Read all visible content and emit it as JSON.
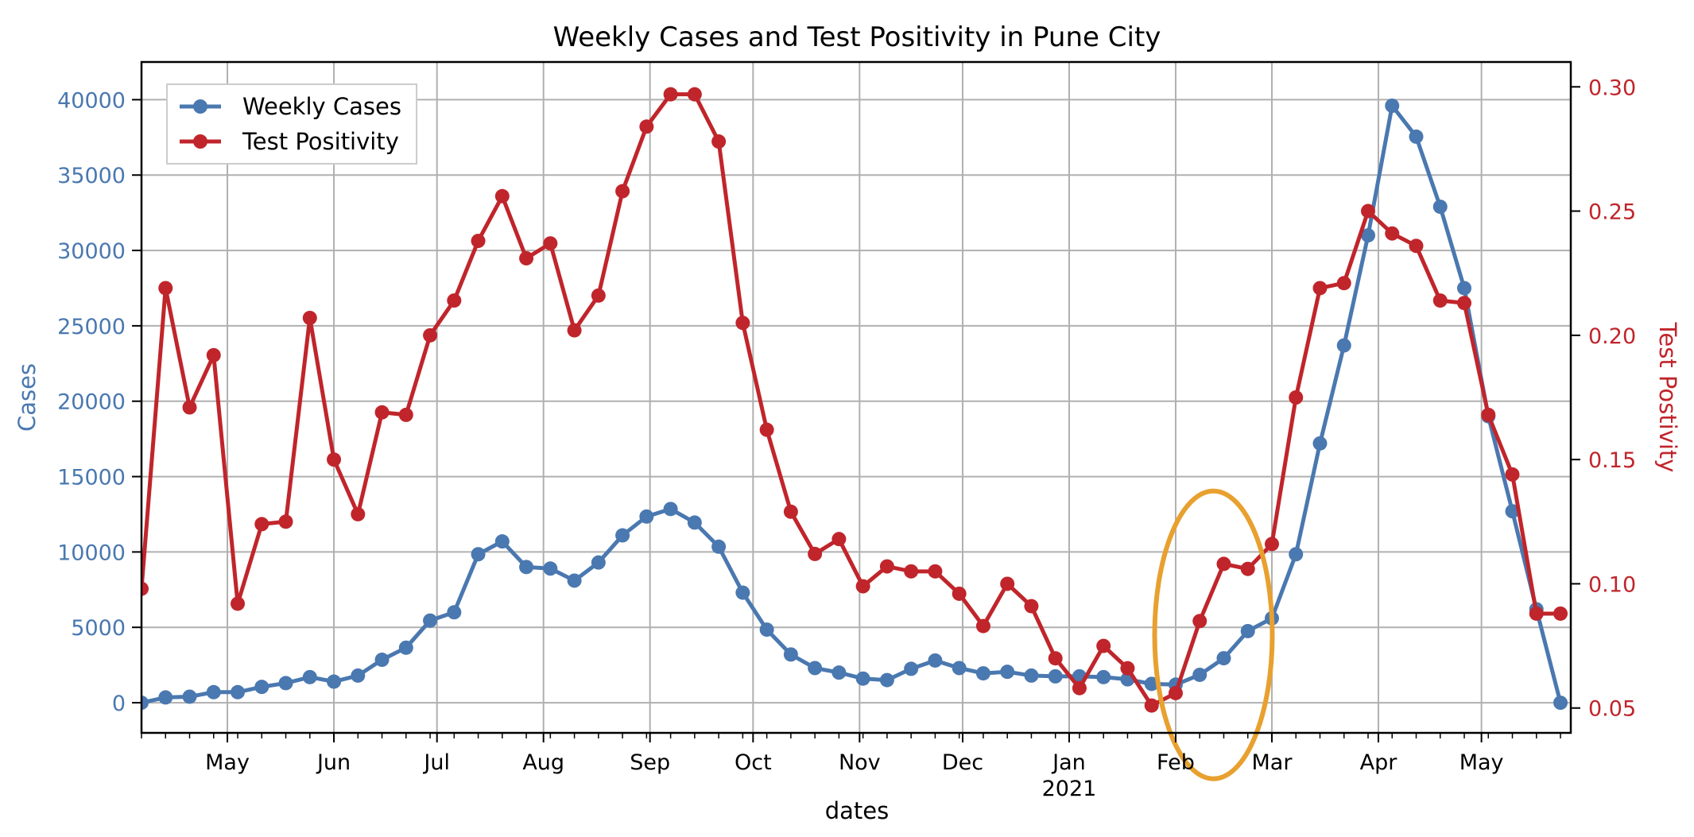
{
  "chart_data": {
    "type": "line",
    "title": "Weekly Cases and Test Positivity in Pune City",
    "xlabel": "dates",
    "ylabel_left": "Cases",
    "ylabel_right": "Test Postivity",
    "x_start": "2020-04-06",
    "x_end": "2021-05-27",
    "ylim_left": [
      -2000,
      42500
    ],
    "ylim_right": [
      0.04,
      0.31
    ],
    "yticks_left": [
      "0",
      "5000",
      "10000",
      "15000",
      "20000",
      "25000",
      "30000",
      "35000",
      "40000"
    ],
    "yticks_right": [
      "0.05",
      "0.10",
      "0.15",
      "0.20",
      "0.25",
      "0.30"
    ],
    "xticks": [
      {
        "date": "2020-05-01",
        "label": "May"
      },
      {
        "date": "2020-06-01",
        "label": "Jun"
      },
      {
        "date": "2020-07-01",
        "label": "Jul"
      },
      {
        "date": "2020-08-01",
        "label": "Aug"
      },
      {
        "date": "2020-09-01",
        "label": "Sep"
      },
      {
        "date": "2020-10-01",
        "label": "Oct"
      },
      {
        "date": "2020-11-01",
        "label": "Nov"
      },
      {
        "date": "2020-12-01",
        "label": "Dec"
      },
      {
        "date": "2021-01-01",
        "label": "Jan"
      },
      {
        "date": "2021-02-01",
        "label": "Feb"
      },
      {
        "date": "2021-03-01",
        "label": "Mar"
      },
      {
        "date": "2021-04-01",
        "label": "Apr"
      },
      {
        "date": "2021-05-01",
        "label": "May"
      }
    ],
    "year_label": {
      "date": "2021-01-01",
      "label": "2021"
    },
    "grid": true,
    "legend": "top-left",
    "colors": {
      "cases": "#4a78b0",
      "positivity": "#c0252b",
      "highlight": "#e8a02f"
    },
    "dates": [
      "2020-04-06",
      "2020-04-13",
      "2020-04-20",
      "2020-04-27",
      "2020-05-04",
      "2020-05-11",
      "2020-05-18",
      "2020-05-25",
      "2020-06-01",
      "2020-06-08",
      "2020-06-15",
      "2020-06-22",
      "2020-06-29",
      "2020-07-06",
      "2020-07-13",
      "2020-07-20",
      "2020-07-27",
      "2020-08-03",
      "2020-08-10",
      "2020-08-17",
      "2020-08-24",
      "2020-08-31",
      "2020-09-07",
      "2020-09-14",
      "2020-09-21",
      "2020-09-28",
      "2020-10-05",
      "2020-10-12",
      "2020-10-19",
      "2020-10-26",
      "2020-11-02",
      "2020-11-09",
      "2020-11-16",
      "2020-11-23",
      "2020-11-30",
      "2020-12-07",
      "2020-12-14",
      "2020-12-21",
      "2020-12-28",
      "2021-01-04",
      "2021-01-11",
      "2021-01-18",
      "2021-01-25",
      "2021-02-01",
      "2021-02-08",
      "2021-02-15",
      "2021-02-22",
      "2021-03-01",
      "2021-03-08",
      "2021-03-15",
      "2021-03-22",
      "2021-03-29",
      "2021-04-05",
      "2021-04-12",
      "2021-04-19",
      "2021-04-26",
      "2021-05-03",
      "2021-05-10",
      "2021-05-17",
      "2021-05-24"
    ],
    "series": [
      {
        "name": "Weekly Cases",
        "axis": "left",
        "values": [
          0,
          350,
          400,
          700,
          700,
          1050,
          1300,
          1700,
          1400,
          1800,
          2850,
          3650,
          5450,
          6000,
          9850,
          10700,
          9000,
          8900,
          8100,
          9300,
          11100,
          12350,
          12850,
          11950,
          10350,
          7300,
          4850,
          3200,
          2300,
          2000,
          1600,
          1500,
          2250,
          2800,
          2300,
          1950,
          2050,
          1800,
          1750,
          1750,
          1700,
          1550,
          1250,
          1200,
          1850,
          2950,
          4750,
          5600,
          9850,
          17200,
          23700,
          31000,
          39600,
          37550,
          32900,
          27500,
          19000,
          12700,
          6200,
          0
        ]
      },
      {
        "name": "Test Positivity",
        "axis": "right",
        "values": [
          0.098,
          0.219,
          0.171,
          0.192,
          0.092,
          0.124,
          0.125,
          0.207,
          0.15,
          0.128,
          0.169,
          0.168,
          0.2,
          0.214,
          0.238,
          0.256,
          0.231,
          0.237,
          0.202,
          0.216,
          0.258,
          0.284,
          0.297,
          0.297,
          0.278,
          0.205,
          0.162,
          0.129,
          0.112,
          0.118,
          0.099,
          0.107,
          0.105,
          0.105,
          0.096,
          0.083,
          0.1,
          0.091,
          0.07,
          0.058,
          0.075,
          0.066,
          0.051,
          0.056,
          0.085,
          0.108,
          0.106,
          0.116,
          0.175,
          0.219,
          0.221,
          0.25,
          0.241,
          0.236,
          0.214,
          0.213,
          0.168,
          0.144,
          0.088,
          0.088
        ]
      }
    ],
    "highlight_ellipse": {
      "center_date": "2021-02-12",
      "center_value_left": 4500,
      "shape": "ellipse"
    }
  }
}
